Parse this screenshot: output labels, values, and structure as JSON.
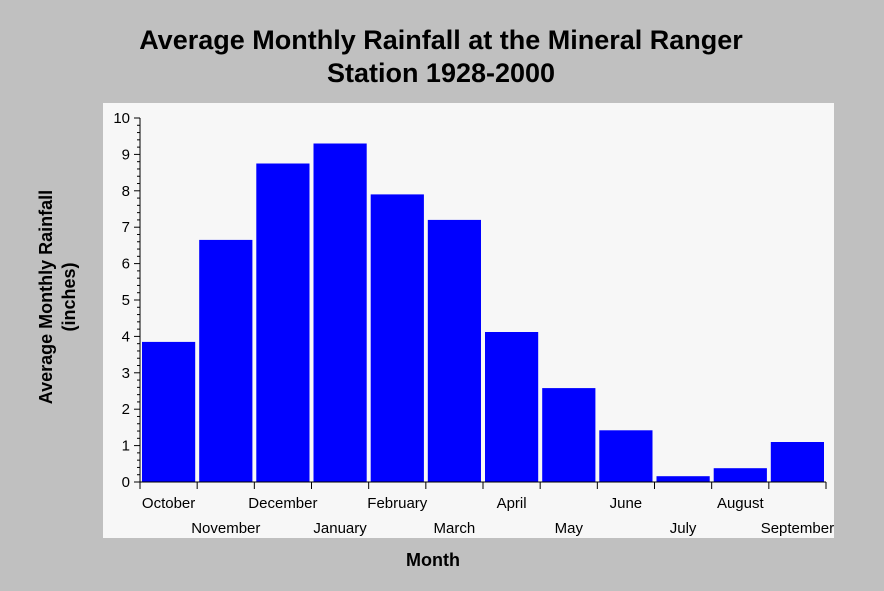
{
  "chart_data": {
    "type": "bar",
    "title_lines": [
      "Average Monthly Rainfall at the Mineral Ranger",
      "Station 1928-2000"
    ],
    "xlabel": "Month",
    "ylabel_lines": [
      "Average Monthly Rainfall",
      "(inches)"
    ],
    "categories": [
      "October",
      "November",
      "December",
      "January",
      "February",
      "March",
      "April",
      "May",
      "June",
      "July",
      "August",
      "September"
    ],
    "values": [
      3.85,
      6.65,
      8.75,
      9.3,
      7.9,
      7.2,
      4.12,
      2.58,
      1.42,
      0.16,
      0.38,
      1.1
    ],
    "ylim": [
      0,
      10
    ],
    "yticks": [
      "0",
      "1",
      "2",
      "3",
      "4",
      "5",
      "6",
      "7",
      "8",
      "9",
      "10"
    ],
    "grid": false,
    "bar_color": "#0000ff",
    "plot_background": "#f7f7f7",
    "page_background": "#c0c0c0"
  }
}
